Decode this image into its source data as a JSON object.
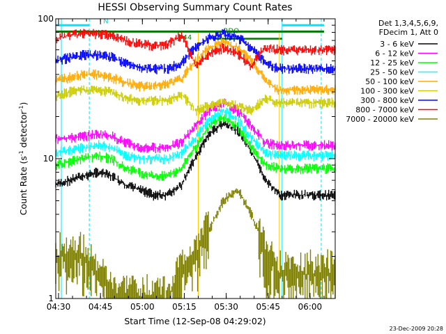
{
  "chart_data": {
    "type": "line",
    "title": "HESSI Observing Summary Count Rates",
    "xlabel": "Start Time (12-Sep-08 04:29:02)",
    "ylabel": "Count Rate (s",
    "ylabel_sup": "-1",
    "ylabel_tail": " detector",
    "ylabel_sup2": "-1",
    "ylabel_end": ")",
    "y_scale": "log",
    "ylim": [
      1,
      100
    ],
    "xlim_minutes": [
      0,
      100
    ],
    "x_ticks": [
      "04:30",
      "04:45",
      "05:00",
      "05:15",
      "05:30",
      "05:45",
      "06:00"
    ],
    "y_ticks": [
      "1",
      "10",
      "100"
    ],
    "footer": "23-Dec-2009 20:28",
    "legend_header": [
      "Det 1,3,4,5,6,9,",
      "FDecim 1, Att 0"
    ],
    "series": [
      {
        "name": "3 - 6 keV",
        "color": "#000000",
        "x": [
          0,
          5,
          10,
          15,
          20,
          25,
          30,
          35,
          40,
          45,
          50,
          55,
          60,
          65,
          70,
          75,
          80,
          85,
          90,
          95,
          100
        ],
        "y": [
          6.5,
          7,
          7.5,
          8,
          7.5,
          6.5,
          6,
          5.5,
          5.5,
          6.5,
          10,
          15,
          18,
          16,
          11,
          7,
          5.5,
          5.5,
          5.5,
          5.5,
          5.5
        ]
      },
      {
        "name": "6 - 12 keV",
        "color": "#ff00ff",
        "x": [
          0,
          5,
          10,
          15,
          20,
          25,
          30,
          35,
          40,
          45,
          50,
          55,
          60,
          65,
          70,
          75,
          80,
          85,
          90,
          95,
          100
        ],
        "y": [
          14,
          14,
          14.5,
          15,
          14.5,
          13,
          12,
          12,
          12,
          13,
          17,
          22,
          25,
          22,
          17,
          13,
          12.5,
          12.5,
          12.5,
          12.5,
          12.5
        ]
      },
      {
        "name": "12 - 25 keV",
        "color": "#00ff00",
        "x": [
          0,
          5,
          10,
          15,
          20,
          25,
          30,
          35,
          40,
          45,
          50,
          55,
          60,
          65,
          70,
          75,
          80,
          85,
          90,
          95,
          100
        ],
        "y": [
          9,
          9.5,
          10,
          10.5,
          10,
          8.5,
          8,
          7.5,
          7.5,
          8.5,
          12,
          17,
          20,
          17,
          12,
          9,
          8.5,
          8.5,
          8.5,
          8.5,
          8.5
        ]
      },
      {
        "name": "25 - 50 keV",
        "color": "#00ffff",
        "x": [
          0,
          5,
          10,
          15,
          20,
          25,
          30,
          35,
          40,
          45,
          50,
          55,
          60,
          65,
          70,
          75,
          80,
          85,
          90,
          95,
          100
        ],
        "y": [
          11,
          11.5,
          12,
          12.5,
          12,
          10.5,
          10,
          10,
          10,
          11,
          14,
          19,
          22,
          19,
          14,
          11,
          10.5,
          10.5,
          10.5,
          10.5,
          10.5
        ]
      },
      {
        "name": "50 - 100 keV",
        "color": "#ffaa00",
        "x": [
          0,
          5,
          10,
          15,
          20,
          25,
          30,
          35,
          40,
          45,
          50,
          55,
          60,
          65,
          70,
          75,
          80,
          85,
          90,
          95,
          100
        ],
        "y": [
          36,
          38,
          40,
          40,
          38,
          35,
          33,
          33,
          34,
          37,
          50,
          62,
          68,
          62,
          50,
          36,
          31,
          31,
          31,
          31,
          31
        ]
      },
      {
        "name": "100 - 300 keV",
        "color": "#cccc00",
        "x": [
          0,
          5,
          10,
          15,
          20,
          25,
          30,
          35,
          40,
          45,
          50,
          55,
          60,
          65,
          70,
          75,
          80,
          85,
          90,
          95,
          100
        ],
        "y": [
          28,
          30,
          31,
          31,
          30,
          27,
          26,
          26,
          26,
          29,
          22,
          24,
          25,
          24,
          22,
          27,
          25,
          25,
          25,
          25,
          25
        ]
      },
      {
        "name": "300 - 800 keV",
        "color": "#0000ff",
        "x": [
          0,
          5,
          10,
          15,
          20,
          25,
          30,
          35,
          40,
          45,
          50,
          55,
          60,
          65,
          70,
          75,
          80,
          85,
          90,
          95,
          100
        ],
        "y": [
          50,
          53,
          55,
          55,
          53,
          48,
          45,
          44,
          44,
          48,
          62,
          74,
          78,
          74,
          62,
          48,
          44,
          44,
          44,
          44,
          44
        ]
      },
      {
        "name": "800 - 7000 keV",
        "color": "#ff0000",
        "x": [
          0,
          5,
          10,
          15,
          20,
          25,
          30,
          35,
          40,
          45,
          50,
          55,
          60,
          65,
          70,
          75,
          80,
          85,
          90,
          95,
          100
        ],
        "y": [
          72,
          76,
          78,
          78,
          76,
          70,
          66,
          64,
          66,
          76,
          46,
          56,
          62,
          56,
          46,
          62,
          60,
          60,
          60,
          60,
          60
        ]
      },
      {
        "name": "7000 - 20000 keV",
        "color": "#808000",
        "x": [
          0,
          5,
          10,
          15,
          20,
          25,
          30,
          35,
          40,
          45,
          50,
          55,
          60,
          65,
          70,
          75,
          80,
          85,
          90,
          95,
          100
        ],
        "y": [
          2,
          2,
          2,
          1.5,
          1,
          1,
          1,
          1,
          1,
          1.5,
          2,
          3,
          5,
          6,
          4,
          2,
          1.5,
          1.5,
          1.5,
          1.5,
          1.5
        ]
      }
    ],
    "annotations": [
      {
        "text": "RDO",
        "color": "#008000"
      },
      {
        "text": "N",
        "color": "#00cccc"
      },
      {
        "text": "P44",
        "color": "#008000"
      }
    ]
  }
}
